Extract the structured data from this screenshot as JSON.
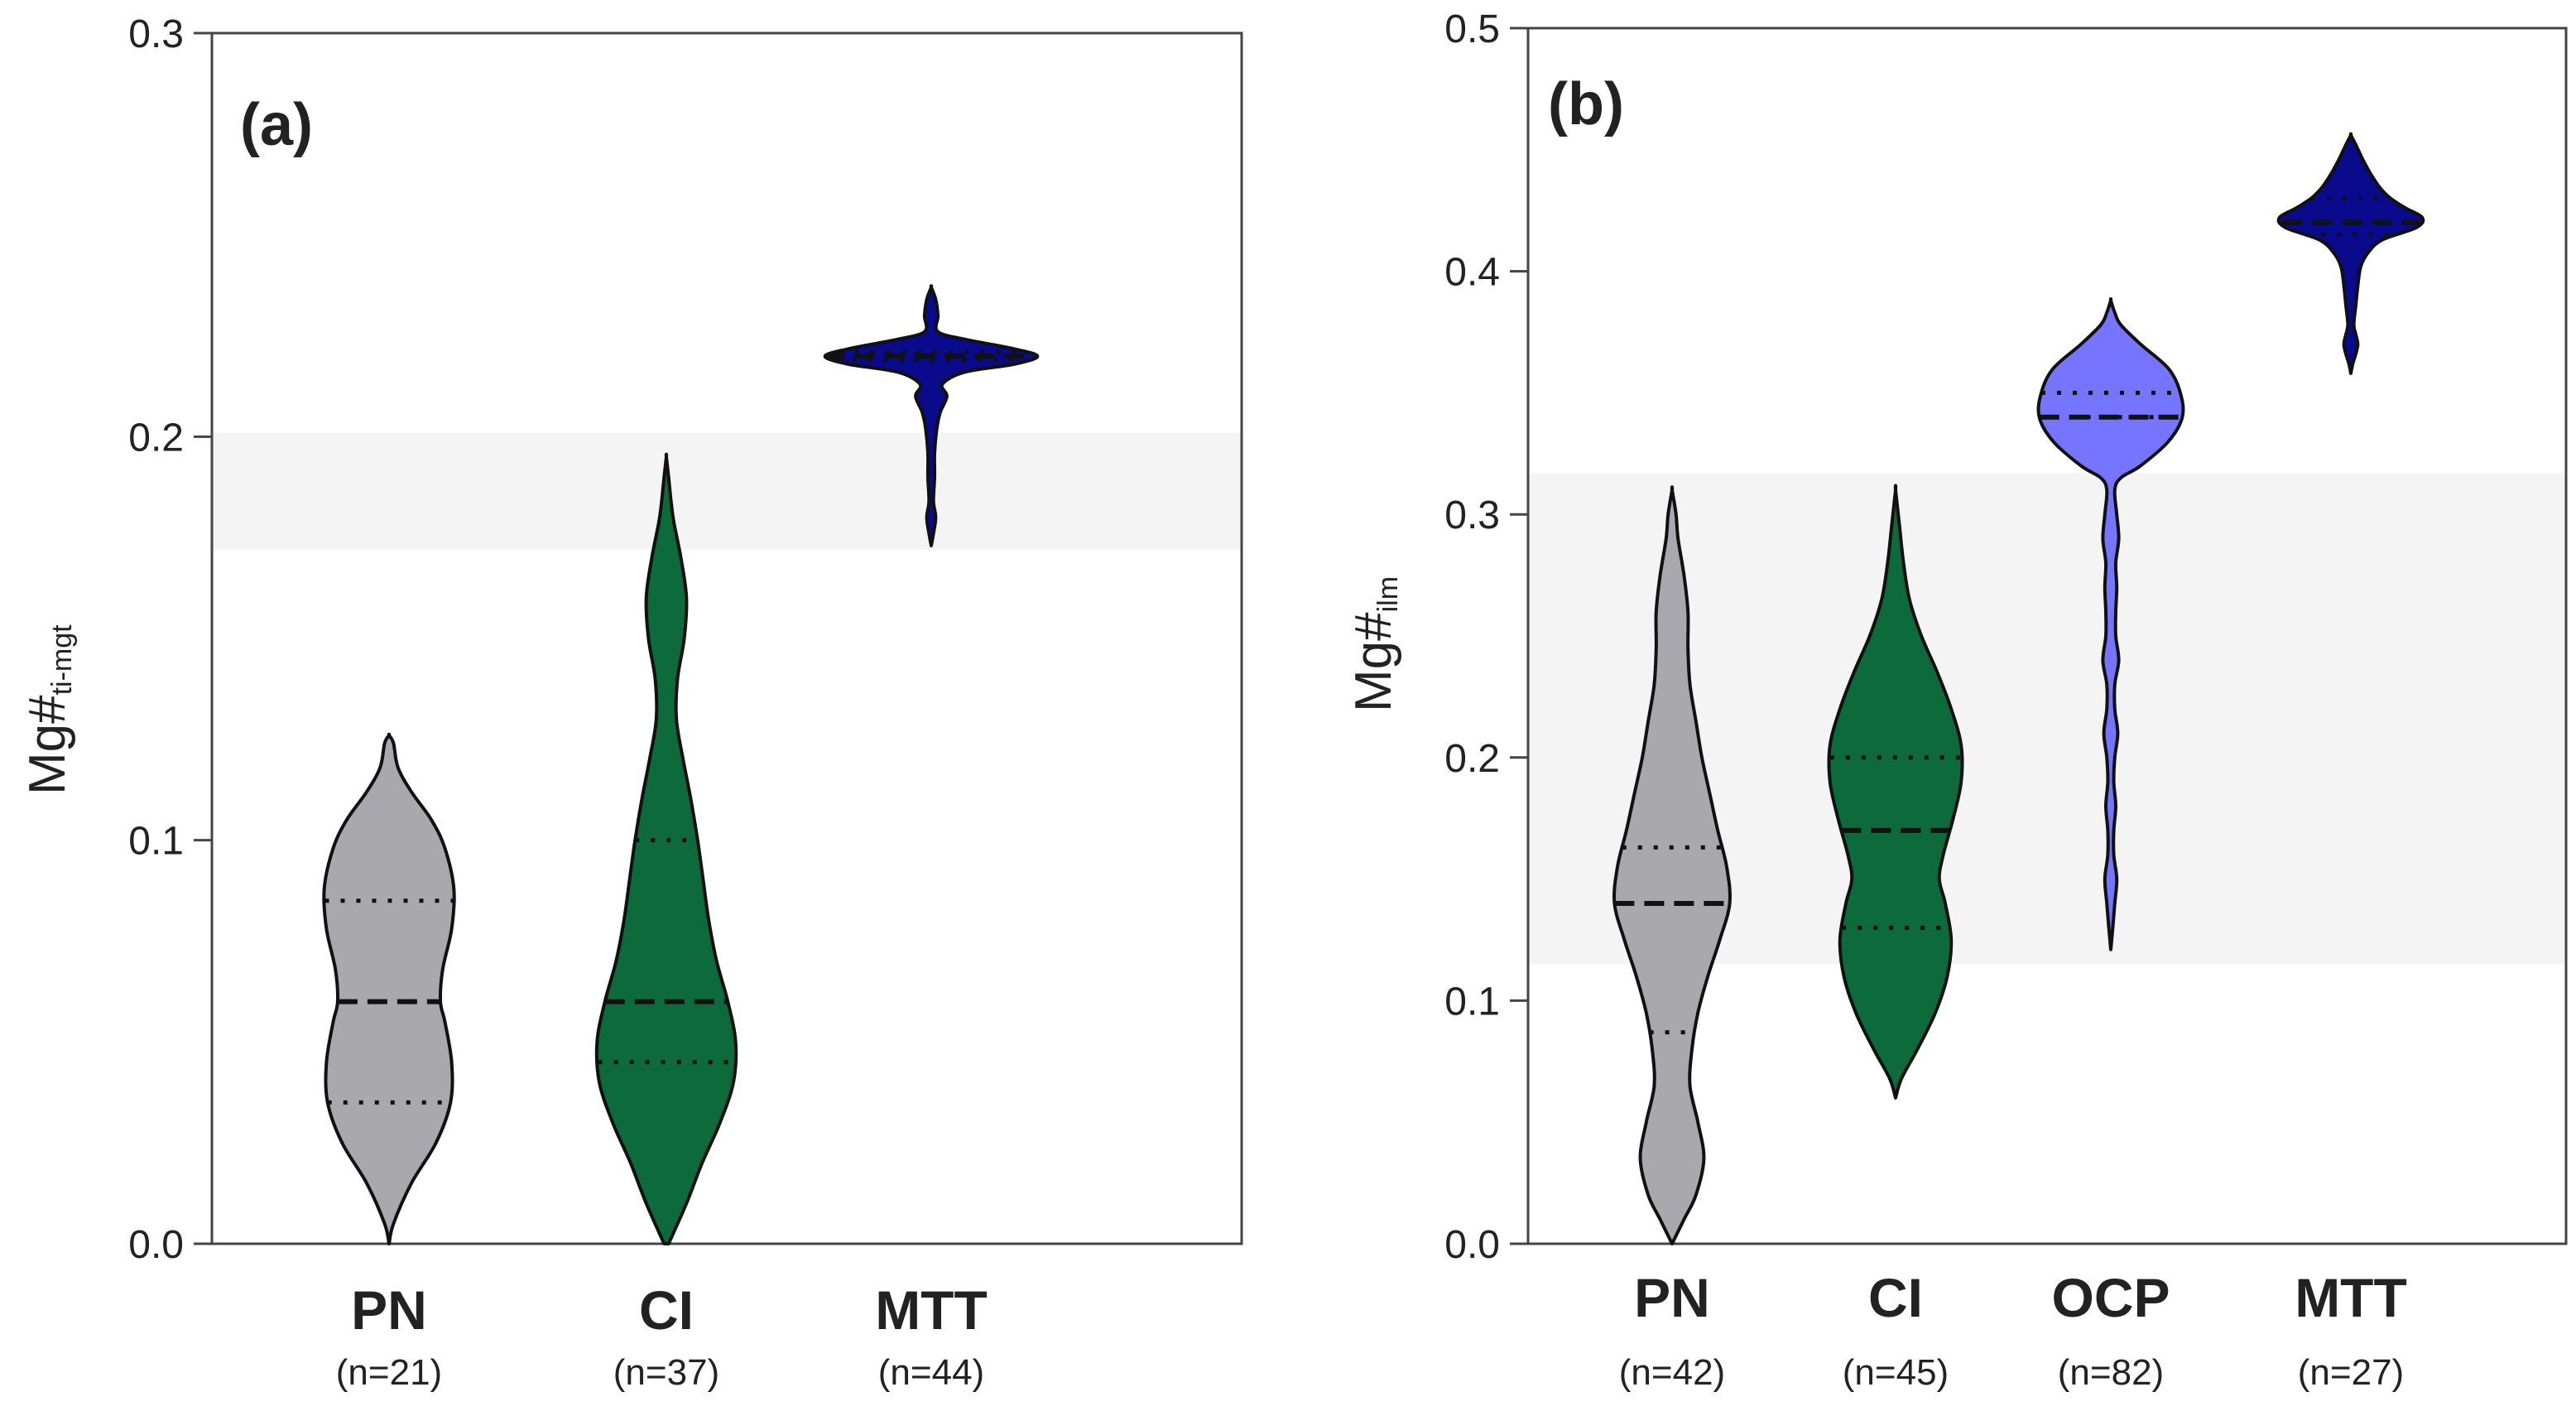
{
  "chart_data": [
    {
      "type": "violin",
      "panel_label": "(a)",
      "ylabel": "Mg#",
      "ylabel_subscript": "ti-mgt",
      "ylim": [
        0,
        0.3
      ],
      "yticks": [
        "0.0",
        "0.1",
        "0.2",
        "0.3"
      ],
      "ytick_values": [
        0,
        0.1,
        0.2,
        0.3
      ],
      "shaded_band": [
        0.172,
        0.201
      ],
      "categories": [
        "PN",
        "CI",
        "MTT"
      ],
      "series": [
        {
          "category": "PN",
          "n_label": "(n=21)",
          "color": "#a8a8ad",
          "median": 0.06,
          "q1": 0.035,
          "q3": 0.085,
          "profile": [
            [
              0.0,
              0
            ],
            [
              0.005,
              0.04
            ],
            [
              0.015,
              0.2
            ],
            [
              0.025,
              0.42
            ],
            [
              0.035,
              0.55
            ],
            [
              0.045,
              0.56
            ],
            [
              0.055,
              0.5
            ],
            [
              0.06,
              0.46
            ],
            [
              0.068,
              0.48
            ],
            [
              0.078,
              0.56
            ],
            [
              0.088,
              0.58
            ],
            [
              0.098,
              0.5
            ],
            [
              0.105,
              0.38
            ],
            [
              0.112,
              0.2
            ],
            [
              0.118,
              0.08
            ],
            [
              0.124,
              0.04
            ],
            [
              0.126,
              0
            ]
          ]
        },
        {
          "category": "CI",
          "n_label": "(n=37)",
          "color": "#0d6a3a",
          "median": 0.06,
          "q1": 0.045,
          "q3": 0.1,
          "profile": [
            [
              0.0,
              0.02
            ],
            [
              0.01,
              0.18
            ],
            [
              0.02,
              0.32
            ],
            [
              0.03,
              0.48
            ],
            [
              0.04,
              0.6
            ],
            [
              0.05,
              0.62
            ],
            [
              0.06,
              0.55
            ],
            [
              0.07,
              0.45
            ],
            [
              0.08,
              0.38
            ],
            [
              0.09,
              0.33
            ],
            [
              0.1,
              0.28
            ],
            [
              0.11,
              0.22
            ],
            [
              0.12,
              0.15
            ],
            [
              0.13,
              0.09
            ],
            [
              0.14,
              0.1
            ],
            [
              0.15,
              0.16
            ],
            [
              0.16,
              0.18
            ],
            [
              0.17,
              0.13
            ],
            [
              0.18,
              0.06
            ],
            [
              0.19,
              0.02
            ],
            [
              0.195,
              0
            ]
          ]
        },
        {
          "category": "MTT",
          "n_label": "(n=44)",
          "color": "#0a0a8c",
          "median": 0.22,
          "q1": 0.219,
          "q3": 0.221,
          "profile": [
            [
              0.173,
              0
            ],
            [
              0.176,
              0.02
            ],
            [
              0.18,
              0.04
            ],
            [
              0.184,
              0.02
            ],
            [
              0.19,
              0.03
            ],
            [
              0.196,
              0.03
            ],
            [
              0.202,
              0.05
            ],
            [
              0.206,
              0.08
            ],
            [
              0.21,
              0.14
            ],
            [
              0.213,
              0.1
            ],
            [
              0.216,
              0.3
            ],
            [
              0.218,
              0.75
            ],
            [
              0.22,
              0.95
            ],
            [
              0.222,
              0.7
            ],
            [
              0.224,
              0.32
            ],
            [
              0.226,
              0.06
            ],
            [
              0.23,
              0.06
            ],
            [
              0.234,
              0.04
            ],
            [
              0.237,
              0
            ]
          ]
        }
      ]
    },
    {
      "type": "violin",
      "panel_label": "(b)",
      "ylabel": "Mg#",
      "ylabel_subscript": "ilm",
      "ylim": [
        0,
        0.5
      ],
      "yticks": [
        "0.0",
        "0.1",
        "0.2",
        "0.3",
        "0.4",
        "0.5"
      ],
      "ytick_values": [
        0,
        0.1,
        0.2,
        0.3,
        0.4,
        0.5
      ],
      "shaded_band": [
        0.115,
        0.317
      ],
      "categories": [
        "PN",
        "CI",
        "OCP",
        "MTT"
      ],
      "series": [
        {
          "category": "PN",
          "n_label": "(n=42)",
          "color": "#a8a8ad",
          "median": 0.14,
          "q1": 0.087,
          "q3": 0.163,
          "profile": [
            [
              0.0,
              0
            ],
            [
              0.01,
              0.12
            ],
            [
              0.02,
              0.24
            ],
            [
              0.035,
              0.32
            ],
            [
              0.05,
              0.26
            ],
            [
              0.065,
              0.18
            ],
            [
              0.08,
              0.2
            ],
            [
              0.095,
              0.26
            ],
            [
              0.11,
              0.36
            ],
            [
              0.125,
              0.48
            ],
            [
              0.14,
              0.58
            ],
            [
              0.155,
              0.55
            ],
            [
              0.17,
              0.46
            ],
            [
              0.185,
              0.38
            ],
            [
              0.2,
              0.3
            ],
            [
              0.215,
              0.24
            ],
            [
              0.23,
              0.18
            ],
            [
              0.245,
              0.16
            ],
            [
              0.26,
              0.16
            ],
            [
              0.275,
              0.12
            ],
            [
              0.29,
              0.06
            ],
            [
              0.3,
              0.04
            ],
            [
              0.31,
              0
            ]
          ]
        },
        {
          "category": "CI",
          "n_label": "(n=45)",
          "color": "#0d6a3a",
          "median": 0.17,
          "q1": 0.13,
          "q3": 0.2,
          "profile": [
            [
              0.06,
              0
            ],
            [
              0.068,
              0.06
            ],
            [
              0.08,
              0.22
            ],
            [
              0.095,
              0.4
            ],
            [
              0.11,
              0.52
            ],
            [
              0.125,
              0.56
            ],
            [
              0.14,
              0.5
            ],
            [
              0.15,
              0.44
            ],
            [
              0.16,
              0.48
            ],
            [
              0.175,
              0.58
            ],
            [
              0.19,
              0.66
            ],
            [
              0.205,
              0.66
            ],
            [
              0.22,
              0.56
            ],
            [
              0.235,
              0.42
            ],
            [
              0.25,
              0.26
            ],
            [
              0.265,
              0.14
            ],
            [
              0.28,
              0.08
            ],
            [
              0.295,
              0.04
            ],
            [
              0.31,
              0
            ]
          ]
        },
        {
          "category": "OCP",
          "n_label": "(n=82)",
          "color": "#7575ff",
          "median": 0.34,
          "q1": 0.34,
          "q3": 0.35,
          "profile": [
            [
              0.121,
              0
            ],
            [
              0.13,
              0.02
            ],
            [
              0.14,
              0.04
            ],
            [
              0.15,
              0.06
            ],
            [
              0.16,
              0.03
            ],
            [
              0.17,
              0.03
            ],
            [
              0.18,
              0.05
            ],
            [
              0.19,
              0.03
            ],
            [
              0.2,
              0.04
            ],
            [
              0.21,
              0.07
            ],
            [
              0.22,
              0.04
            ],
            [
              0.23,
              0.04
            ],
            [
              0.24,
              0.08
            ],
            [
              0.25,
              0.05
            ],
            [
              0.26,
              0.05
            ],
            [
              0.27,
              0.06
            ],
            [
              0.28,
              0.05
            ],
            [
              0.29,
              0.08
            ],
            [
              0.3,
              0.06
            ],
            [
              0.31,
              0.04
            ],
            [
              0.315,
              0.1
            ],
            [
              0.32,
              0.3
            ],
            [
              0.33,
              0.58
            ],
            [
              0.34,
              0.72
            ],
            [
              0.35,
              0.7
            ],
            [
              0.36,
              0.58
            ],
            [
              0.37,
              0.3
            ],
            [
              0.378,
              0.1
            ],
            [
              0.383,
              0.04
            ],
            [
              0.388,
              0
            ]
          ]
        },
        {
          "category": "MTT",
          "n_label": "(n=27)",
          "color": "#0a0a8c",
          "median": 0.42,
          "q1": 0.415,
          "q3": 0.43,
          "profile": [
            [
              0.358,
              0
            ],
            [
              0.362,
              0.02
            ],
            [
              0.366,
              0.05
            ],
            [
              0.37,
              0.07
            ],
            [
              0.374,
              0.05
            ],
            [
              0.378,
              0.03
            ],
            [
              0.386,
              0.05
            ],
            [
              0.394,
              0.07
            ],
            [
              0.402,
              0.1
            ],
            [
              0.408,
              0.18
            ],
            [
              0.413,
              0.32
            ],
            [
              0.418,
              0.66
            ],
            [
              0.422,
              0.72
            ],
            [
              0.426,
              0.55
            ],
            [
              0.43,
              0.4
            ],
            [
              0.434,
              0.3
            ],
            [
              0.44,
              0.2
            ],
            [
              0.446,
              0.12
            ],
            [
              0.452,
              0.05
            ],
            [
              0.456,
              0
            ]
          ]
        }
      ]
    }
  ]
}
